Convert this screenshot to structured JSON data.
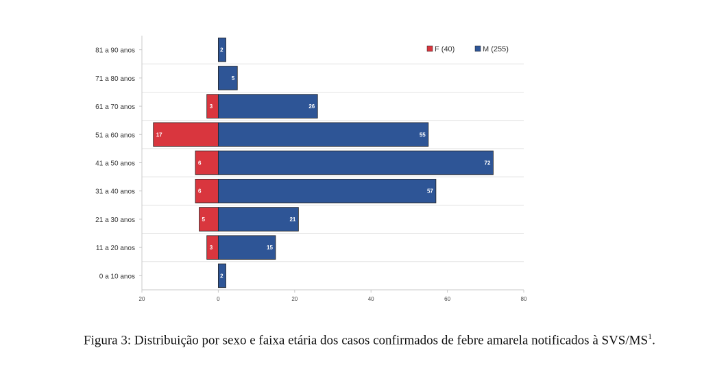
{
  "chart_data": {
    "type": "bar",
    "orientation": "horizontal-population-pyramid",
    "categories": [
      "0 a 10 anos",
      "11 a 20 anos",
      "21 a 30 anos",
      "31 a 40 anos",
      "41 a 50 anos",
      "51 a 60 anos",
      "61 a 70 anos",
      "71 a 80 anos",
      "81 a 90 anos"
    ],
    "series": [
      {
        "name": "F (40)",
        "direction": "left",
        "values": [
          0,
          3,
          5,
          6,
          6,
          17,
          3,
          0,
          0
        ],
        "color": "#d9363e"
      },
      {
        "name": "M (255)",
        "direction": "right",
        "values": [
          2,
          15,
          21,
          57,
          72,
          55,
          26,
          5,
          2
        ],
        "color": "#2e5596"
      }
    ],
    "x_ticks": [
      "20",
      "0",
      "20",
      "40",
      "60",
      "80"
    ],
    "xlim": [
      -20,
      80
    ],
    "grid": true,
    "legend_position": "top-right",
    "title": "",
    "xlabel": "",
    "ylabel": ""
  },
  "caption": {
    "text": "Figura 3: Distribuição por sexo e faixa etária dos casos confirmados de febre amarela notificados à SVS/MS",
    "superscript": "1",
    "end": "."
  }
}
